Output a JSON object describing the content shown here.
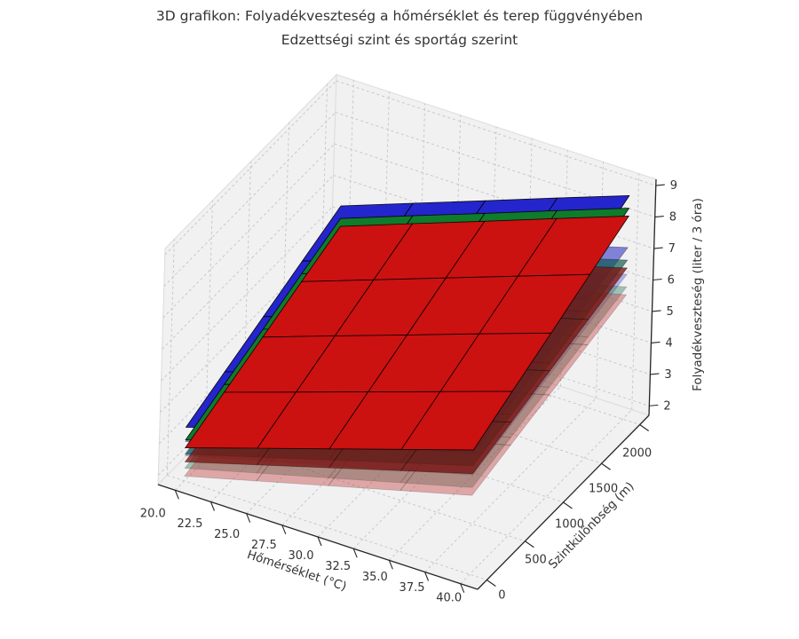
{
  "title": {
    "line1": "3D grafikon: Folyadékveszteség a hőmérséklet és terep függvényében",
    "line2": "Edzettségi szint és sportág szerint"
  },
  "chart_data": {
    "type": "surface3d",
    "title": "3D grafikon: Folyadékveszteség a hőmérséklet és terep függvényében — Edzettségi szint és sportág szerint",
    "xlabel": "Hőmérséklet (°C)",
    "ylabel": "Szintkülönbség (m)",
    "zlabel": "Folyadékveszteség (liter / 3 óra)",
    "xlim": [
      18.8,
      41.2
    ],
    "ylim": [
      -120,
      2120
    ],
    "zlim": [
      1.7,
      9.2
    ],
    "x_ticks": {
      "values": [
        20,
        22.5,
        25,
        27.5,
        30,
        32.5,
        35,
        37.5,
        40
      ],
      "labels": [
        "20.0",
        "22.5",
        "25.0",
        "27.5",
        "30.0",
        "32.5",
        "35.0",
        "37.5",
        "40.0"
      ]
    },
    "y_ticks": {
      "values": [
        0,
        500,
        1000,
        1500,
        2000
      ],
      "labels": [
        "0",
        "500",
        "1000",
        "1500",
        "2000"
      ]
    },
    "z_ticks": {
      "values": [
        2,
        3,
        4,
        5,
        6,
        7,
        8,
        9
      ],
      "labels": [
        "2",
        "3",
        "4",
        "5",
        "6",
        "7",
        "8",
        "9"
      ]
    },
    "grid_on": true,
    "legend": "none",
    "grid_T": [
      20,
      25,
      30,
      35,
      40
    ],
    "grid_E": [
      0,
      500,
      1000,
      1500,
      2000
    ],
    "groups": [
      {
        "name": "fitness-level-3-most-transparent",
        "alpha": 0.4,
        "edge": "rgba(0,0,0,0.18)",
        "sports": [
          {
            "name": "sport-blue",
            "color": "rgba(80,80,200,0.40)",
            "z_offset": 0.65
          },
          {
            "name": "sport-green",
            "color": "rgba(40,120,90,0.40)",
            "z_offset": 0.25
          },
          {
            "name": "sport-red",
            "color": "rgba(194,64,64,0.42)",
            "z_offset": 0
          }
        ],
        "z_base": [
          [
            1.85,
            2.21,
            2.57,
            2.93,
            3.29
          ],
          [
            2.44,
            2.8,
            3.16,
            3.52,
            3.88
          ],
          [
            3.03,
            3.39,
            3.75,
            4.11,
            4.47
          ],
          [
            3.62,
            3.98,
            4.34,
            4.7,
            5.06
          ],
          [
            4.21,
            4.57,
            4.93,
            5.29,
            5.65
          ]
        ]
      },
      {
        "name": "fitness-level-2-semi-transparent",
        "alpha": 0.7,
        "edge": "rgba(0,0,0,0.35)",
        "sports": [
          {
            "name": "sport-blue",
            "color": "rgba(60,60,200,0.62)",
            "z_offset": 0.65
          },
          {
            "name": "sport-green",
            "color": "rgba(10,90,80,0.68)",
            "z_offset": 0.25
          },
          {
            "name": "sport-red",
            "color": "rgba(122,20,16,0.78)",
            "z_offset": 0
          }
        ],
        "z_base": [
          [
            2.3,
            2.7,
            3.1,
            3.5,
            3.9
          ],
          [
            2.95,
            3.35,
            3.75,
            4.15,
            4.55
          ],
          [
            3.6,
            4.0,
            4.4,
            4.8,
            5.2
          ],
          [
            4.25,
            4.65,
            5.05,
            5.45,
            5.85
          ],
          [
            4.9,
            5.3,
            5.7,
            6.1,
            6.5
          ]
        ]
      },
      {
        "name": "fitness-level-1-opaque",
        "alpha": 1.0,
        "edge": "rgba(0,0,0,0.9)",
        "sports": [
          {
            "name": "sport-blue",
            "color": "#2525cd",
            "z_offset": 0.65
          },
          {
            "name": "sport-green",
            "color": "#107b2b",
            "z_offset": 0.25
          },
          {
            "name": "sport-red",
            "color": "#cc1111",
            "z_offset": 0
          }
        ],
        "z_base": [
          [
            2.75,
            3.28,
            3.8,
            4.33,
            4.85
          ],
          [
            3.48,
            4.03,
            4.58,
            5.13,
            5.68
          ],
          [
            4.2,
            4.78,
            5.35,
            5.93,
            6.5
          ],
          [
            4.93,
            5.53,
            6.13,
            6.73,
            7.33
          ],
          [
            5.65,
            6.28,
            6.9,
            7.53,
            8.15
          ]
        ]
      }
    ],
    "style": {
      "background": "#ffffff",
      "pane_color": "#f1f1f2",
      "pane_edge": "#dcdcde",
      "grid_color": "#c4c4c8",
      "axis_color": "#262626",
      "text_color": "#333333"
    }
  }
}
